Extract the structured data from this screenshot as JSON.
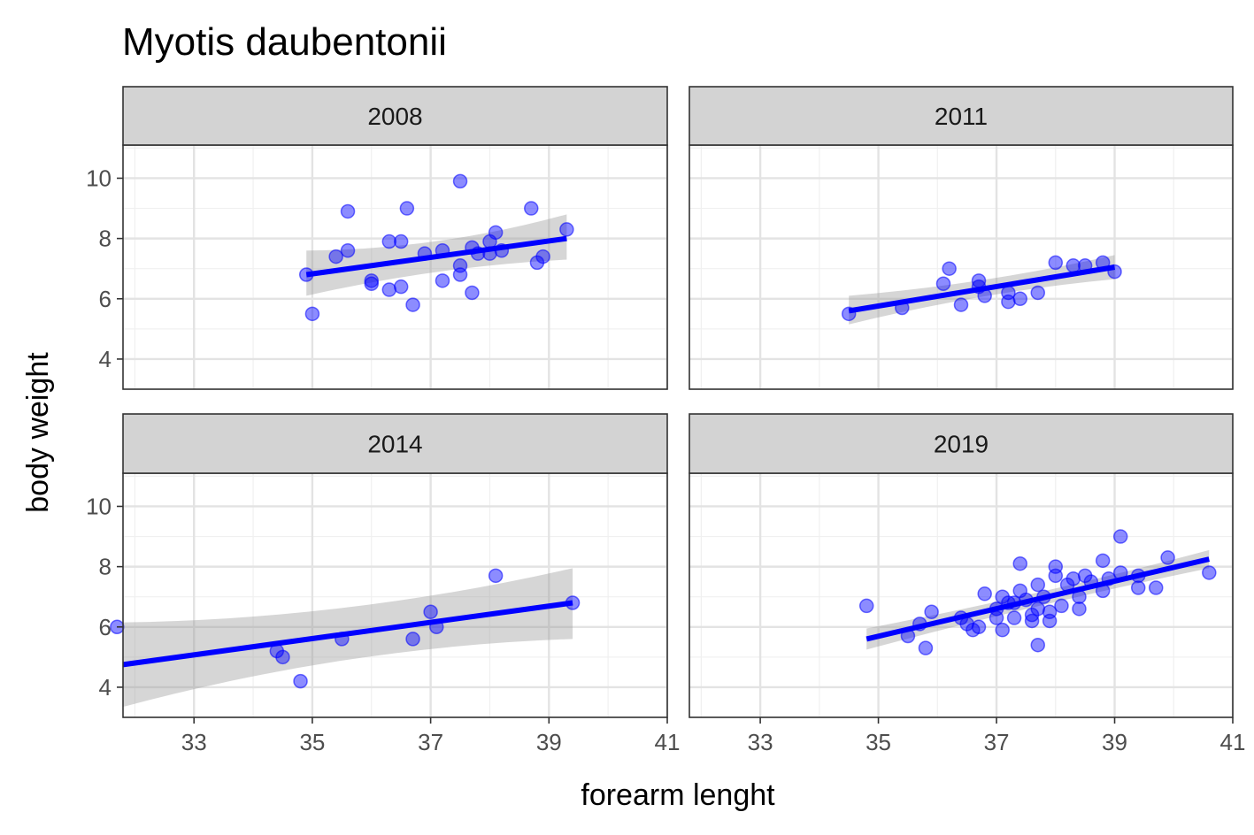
{
  "chart_data": {
    "type": "scatter",
    "title": "Myotis daubentonii",
    "xlabel": "forearm lenght",
    "ylabel": "body weight",
    "xlim": [
      31.8,
      41.0
    ],
    "ylim": [
      3.0,
      11.1
    ],
    "xticks": [
      "33",
      "35",
      "37",
      "39",
      "41"
    ],
    "yticks": [
      "4",
      "6",
      "8",
      "10"
    ],
    "grid": true,
    "legend": "none",
    "point_color": "#0000ff",
    "line_color": "#0000ff",
    "band_color": "#999999",
    "strip_color": "#d3d3d3",
    "panels": [
      {
        "label": "2008",
        "points": [
          {
            "x": 34.9,
            "y": 6.8
          },
          {
            "x": 35.0,
            "y": 5.5
          },
          {
            "x": 35.4,
            "y": 7.4
          },
          {
            "x": 35.6,
            "y": 8.9
          },
          {
            "x": 35.6,
            "y": 7.6
          },
          {
            "x": 36.0,
            "y": 6.6
          },
          {
            "x": 36.0,
            "y": 6.5
          },
          {
            "x": 36.3,
            "y": 6.3
          },
          {
            "x": 36.3,
            "y": 7.9
          },
          {
            "x": 36.5,
            "y": 7.9
          },
          {
            "x": 36.5,
            "y": 6.4
          },
          {
            "x": 36.6,
            "y": 9.0
          },
          {
            "x": 36.7,
            "y": 5.8
          },
          {
            "x": 36.9,
            "y": 7.5
          },
          {
            "x": 37.2,
            "y": 7.6
          },
          {
            "x": 37.2,
            "y": 6.6
          },
          {
            "x": 37.5,
            "y": 9.9
          },
          {
            "x": 37.5,
            "y": 7.1
          },
          {
            "x": 37.5,
            "y": 6.8
          },
          {
            "x": 37.7,
            "y": 7.7
          },
          {
            "x": 37.7,
            "y": 6.2
          },
          {
            "x": 37.8,
            "y": 7.5
          },
          {
            "x": 38.0,
            "y": 7.5
          },
          {
            "x": 38.0,
            "y": 7.9
          },
          {
            "x": 38.1,
            "y": 8.2
          },
          {
            "x": 38.2,
            "y": 7.6
          },
          {
            "x": 38.7,
            "y": 9.0
          },
          {
            "x": 38.8,
            "y": 7.2
          },
          {
            "x": 38.9,
            "y": 7.4
          },
          {
            "x": 39.3,
            "y": 8.3
          }
        ],
        "fit": {
          "x": [
            34.9,
            39.3
          ],
          "y": [
            6.8,
            8.0
          ]
        },
        "band": {
          "x": [
            34.9,
            37.1,
            39.3
          ],
          "upper": [
            7.6,
            7.62,
            8.8
          ],
          "lower": [
            6.1,
            7.08,
            7.3
          ]
        }
      },
      {
        "label": "2011",
        "points": [
          {
            "x": 34.5,
            "y": 5.5
          },
          {
            "x": 35.4,
            "y": 5.7
          },
          {
            "x": 36.1,
            "y": 6.5
          },
          {
            "x": 36.2,
            "y": 7.0
          },
          {
            "x": 36.4,
            "y": 5.8
          },
          {
            "x": 36.7,
            "y": 6.6
          },
          {
            "x": 36.7,
            "y": 6.4
          },
          {
            "x": 36.8,
            "y": 6.1
          },
          {
            "x": 37.2,
            "y": 6.2
          },
          {
            "x": 37.2,
            "y": 5.9
          },
          {
            "x": 37.4,
            "y": 6.0
          },
          {
            "x": 37.7,
            "y": 6.2
          },
          {
            "x": 38.0,
            "y": 7.2
          },
          {
            "x": 38.3,
            "y": 7.1
          },
          {
            "x": 38.5,
            "y": 7.1
          },
          {
            "x": 38.8,
            "y": 7.2
          },
          {
            "x": 39.0,
            "y": 6.9
          }
        ],
        "fit": {
          "x": [
            34.5,
            39.0
          ],
          "y": [
            5.6,
            7.05
          ]
        },
        "band": {
          "x": [
            34.5,
            36.8,
            39.0
          ],
          "upper": [
            6.1,
            6.48,
            7.45
          ],
          "lower": [
            5.15,
            6.25,
            6.65
          ]
        }
      },
      {
        "label": "2014",
        "points": [
          {
            "x": 31.7,
            "y": 6.0
          },
          {
            "x": 34.4,
            "y": 5.2
          },
          {
            "x": 34.5,
            "y": 5.0
          },
          {
            "x": 34.8,
            "y": 4.2
          },
          {
            "x": 35.5,
            "y": 5.6
          },
          {
            "x": 36.7,
            "y": 5.6
          },
          {
            "x": 37.0,
            "y": 6.5
          },
          {
            "x": 37.1,
            "y": 6.0
          },
          {
            "x": 38.1,
            "y": 7.7
          },
          {
            "x": 39.4,
            "y": 6.8
          }
        ],
        "fit": {
          "x": [
            31.8,
            39.4
          ],
          "y": [
            4.75,
            6.8
          ]
        },
        "band": {
          "x": [
            31.8,
            35.6,
            39.4
          ],
          "upper": [
            6.15,
            6.25,
            7.95
          ],
          "lower": [
            3.35,
            5.35,
            5.6
          ]
        }
      },
      {
        "label": "2019",
        "points": [
          {
            "x": 34.8,
            "y": 6.7
          },
          {
            "x": 35.5,
            "y": 5.7
          },
          {
            "x": 35.7,
            "y": 6.1
          },
          {
            "x": 35.8,
            "y": 5.3
          },
          {
            "x": 35.9,
            "y": 6.5
          },
          {
            "x": 36.4,
            "y": 6.3
          },
          {
            "x": 36.5,
            "y": 6.1
          },
          {
            "x": 36.6,
            "y": 5.9
          },
          {
            "x": 36.7,
            "y": 6.0
          },
          {
            "x": 36.8,
            "y": 7.1
          },
          {
            "x": 37.0,
            "y": 6.3
          },
          {
            "x": 37.0,
            "y": 6.6
          },
          {
            "x": 37.1,
            "y": 7.0
          },
          {
            "x": 37.1,
            "y": 5.9
          },
          {
            "x": 37.2,
            "y": 6.8
          },
          {
            "x": 37.3,
            "y": 6.3
          },
          {
            "x": 37.3,
            "y": 6.8
          },
          {
            "x": 37.4,
            "y": 7.2
          },
          {
            "x": 37.4,
            "y": 8.1
          },
          {
            "x": 37.5,
            "y": 6.9
          },
          {
            "x": 37.6,
            "y": 6.4
          },
          {
            "x": 37.6,
            "y": 6.2
          },
          {
            "x": 37.7,
            "y": 7.4
          },
          {
            "x": 37.7,
            "y": 6.6
          },
          {
            "x": 37.7,
            "y": 5.4
          },
          {
            "x": 37.8,
            "y": 7.0
          },
          {
            "x": 37.9,
            "y": 6.5
          },
          {
            "x": 37.9,
            "y": 6.2
          },
          {
            "x": 38.0,
            "y": 8.0
          },
          {
            "x": 38.0,
            "y": 7.7
          },
          {
            "x": 38.1,
            "y": 6.7
          },
          {
            "x": 38.2,
            "y": 7.4
          },
          {
            "x": 38.3,
            "y": 7.6
          },
          {
            "x": 38.4,
            "y": 6.6
          },
          {
            "x": 38.4,
            "y": 7.0
          },
          {
            "x": 38.5,
            "y": 7.7
          },
          {
            "x": 38.6,
            "y": 7.5
          },
          {
            "x": 38.8,
            "y": 7.2
          },
          {
            "x": 38.8,
            "y": 8.2
          },
          {
            "x": 38.9,
            "y": 7.6
          },
          {
            "x": 39.1,
            "y": 9.0
          },
          {
            "x": 39.1,
            "y": 7.8
          },
          {
            "x": 39.4,
            "y": 7.3
          },
          {
            "x": 39.4,
            "y": 7.7
          },
          {
            "x": 39.7,
            "y": 7.3
          },
          {
            "x": 39.9,
            "y": 8.3
          },
          {
            "x": 40.6,
            "y": 7.8
          }
        ],
        "fit": {
          "x": [
            34.8,
            40.6
          ],
          "y": [
            5.6,
            8.25
          ]
        },
        "band": {
          "x": [
            34.8,
            37.8,
            40.6
          ],
          "upper": [
            5.95,
            7.08,
            8.55
          ],
          "lower": [
            5.25,
            6.82,
            7.95
          ]
        }
      }
    ]
  }
}
